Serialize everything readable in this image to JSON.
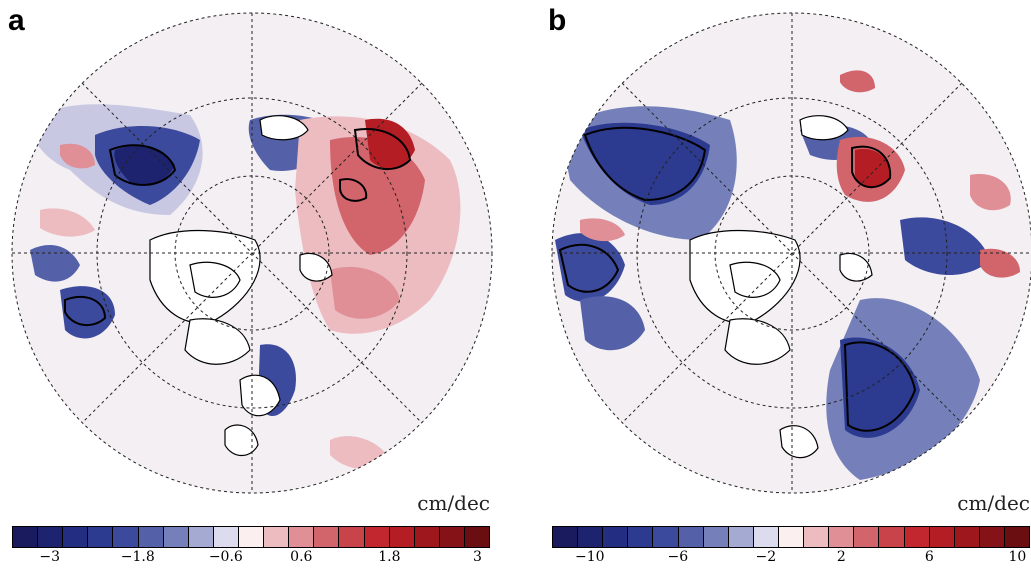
{
  "panels": [
    {
      "id": "a",
      "letter": "a",
      "unit": "cm/dec",
      "colorbar": {
        "colors": [
          "#1a1a5e",
          "#1e2370",
          "#232d82",
          "#2c3a90",
          "#3b4a9c",
          "#5461a8",
          "#7580ba",
          "#a5aad2",
          "#dcdcee",
          "#fbeff0",
          "#ecbcc0",
          "#df8f95",
          "#d2646c",
          "#c9434b",
          "#c2272f",
          "#b41d24",
          "#9e171c",
          "#841217",
          "#6a0e12"
        ],
        "ticks": [
          "−3",
          "−1.8",
          "−0.6",
          "0.6",
          "1.8",
          "3"
        ]
      }
    },
    {
      "id": "b",
      "letter": "b",
      "unit": "cm/dec",
      "colorbar": {
        "colors": [
          "#1a1a5e",
          "#1e2370",
          "#232d82",
          "#2c3a90",
          "#3b4a9c",
          "#5461a8",
          "#7580ba",
          "#a5aad2",
          "#dcdcee",
          "#fbeff0",
          "#ecbcc0",
          "#df8f95",
          "#d2646c",
          "#c9434b",
          "#c2272f",
          "#b41d24",
          "#9e171c",
          "#841217",
          "#6a0e12"
        ],
        "ticks": [
          "−10",
          "−6",
          "−2",
          "2",
          "6",
          "10"
        ]
      }
    }
  ]
}
